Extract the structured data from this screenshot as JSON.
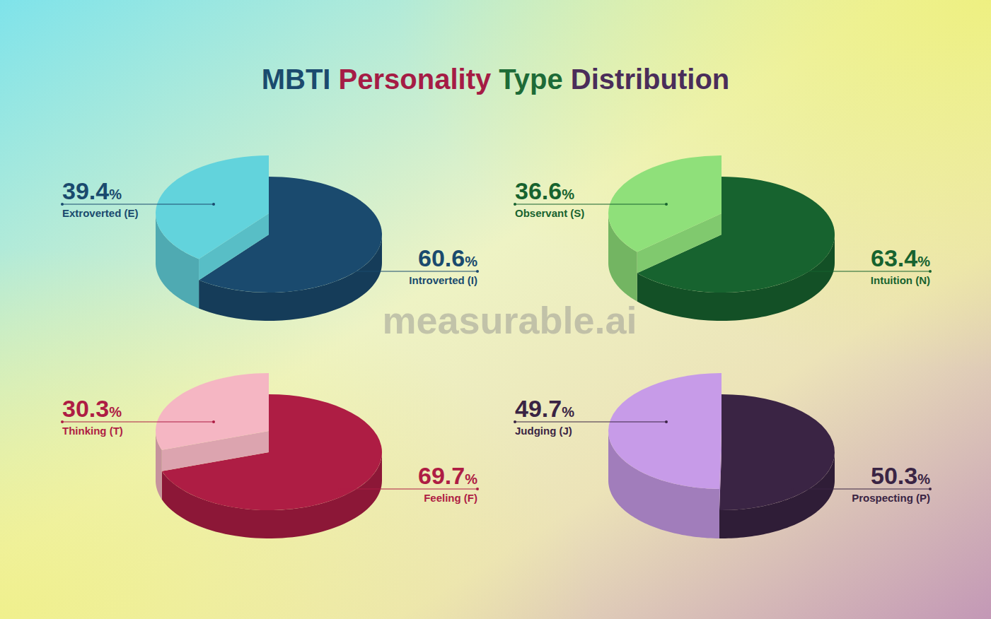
{
  "title": "MBTI Personality Type Distribution",
  "watermark": "measurable.ai",
  "chart_data": [
    {
      "type": "pie",
      "categories": [
        "Extroverted (E)",
        "Introverted (I)"
      ],
      "values": [
        39.4,
        60.6
      ],
      "value_labels": [
        "39.4%",
        "60.6%"
      ],
      "colors": [
        "#62d3dc",
        "#1a4a6e"
      ],
      "data_labels": true
    },
    {
      "type": "pie",
      "categories": [
        "Observant (S)",
        "Intuition (N)"
      ],
      "values": [
        36.6,
        63.4
      ],
      "value_labels": [
        "36.6%",
        "63.4%"
      ],
      "colors": [
        "#8fe07a",
        "#17632f"
      ],
      "data_labels": true
    },
    {
      "type": "pie",
      "categories": [
        "Thinking (T)",
        "Feeling (F)"
      ],
      "values": [
        30.3,
        69.7
      ],
      "value_labels": [
        "30.3%",
        "69.7%"
      ],
      "colors": [
        "#f5b6c3",
        "#ae1d44"
      ],
      "data_labels": true
    },
    {
      "type": "pie",
      "categories": [
        "Judging (J)",
        "Prospecting (P)"
      ],
      "values": [
        49.7,
        50.3
      ],
      "value_labels": [
        "49.7%",
        "50.3%"
      ],
      "colors": [
        "#c79be8",
        "#3a2444"
      ],
      "data_labels": true
    }
  ]
}
